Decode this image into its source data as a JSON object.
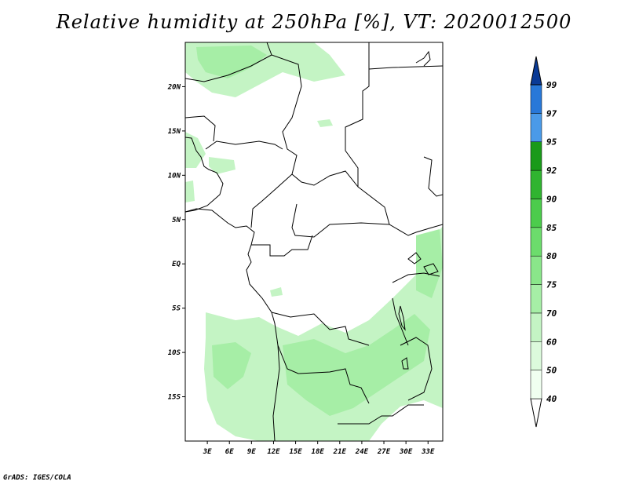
{
  "title": "Relative humidity at 250hPa [%], VT: 2020012500",
  "credit": "GrADS: IGES/COLA",
  "map": {
    "lon_range": [
      0,
      35
    ],
    "lat_range": [
      -20,
      25
    ],
    "x_ticks": [
      "3E",
      "6E",
      "9E",
      "12E",
      "15E",
      "18E",
      "21E",
      "24E",
      "27E",
      "30E",
      "33E"
    ],
    "y_ticks": [
      "20N",
      "15N",
      "10N",
      "5N",
      "EQ",
      "5S",
      "10S",
      "15S"
    ]
  },
  "colorbar": {
    "levels": [
      "40",
      "50",
      "60",
      "70",
      "75",
      "80",
      "85",
      "90",
      "92",
      "95",
      "97",
      "99"
    ],
    "colors": [
      "#f0fff0",
      "#dcfadc",
      "#c4f4c4",
      "#a6eea6",
      "#8ae68a",
      "#6cdc6c",
      "#4ccc4c",
      "#30b430",
      "#1a9a1a",
      "#4a9ae8",
      "#2878d8",
      "#1458c0",
      "#0a3a96"
    ]
  }
}
